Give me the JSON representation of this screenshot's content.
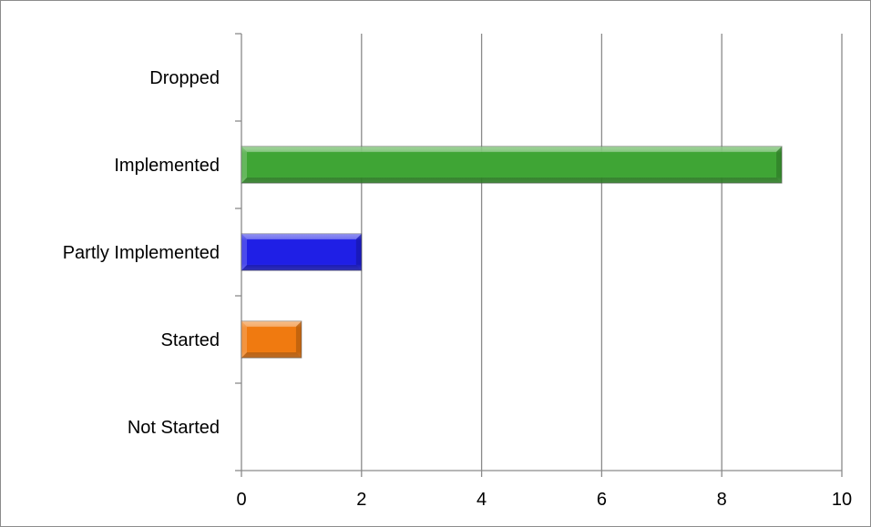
{
  "chart_data": {
    "type": "bar",
    "orientation": "horizontal",
    "categories": [
      "Not Started",
      "Started",
      "Partly Implemented",
      "Implemented",
      "Dropped"
    ],
    "values": [
      0,
      1,
      2,
      9,
      0
    ],
    "bar_colors": [
      "#4F81BD",
      "#F07A10",
      "#1F1FE6",
      "#3FA535",
      "#4F81BD"
    ],
    "xlim": [
      0,
      10
    ],
    "xticks": [
      "0",
      "2",
      "4",
      "6",
      "8",
      "10"
    ],
    "grid": true,
    "legend": "none"
  }
}
